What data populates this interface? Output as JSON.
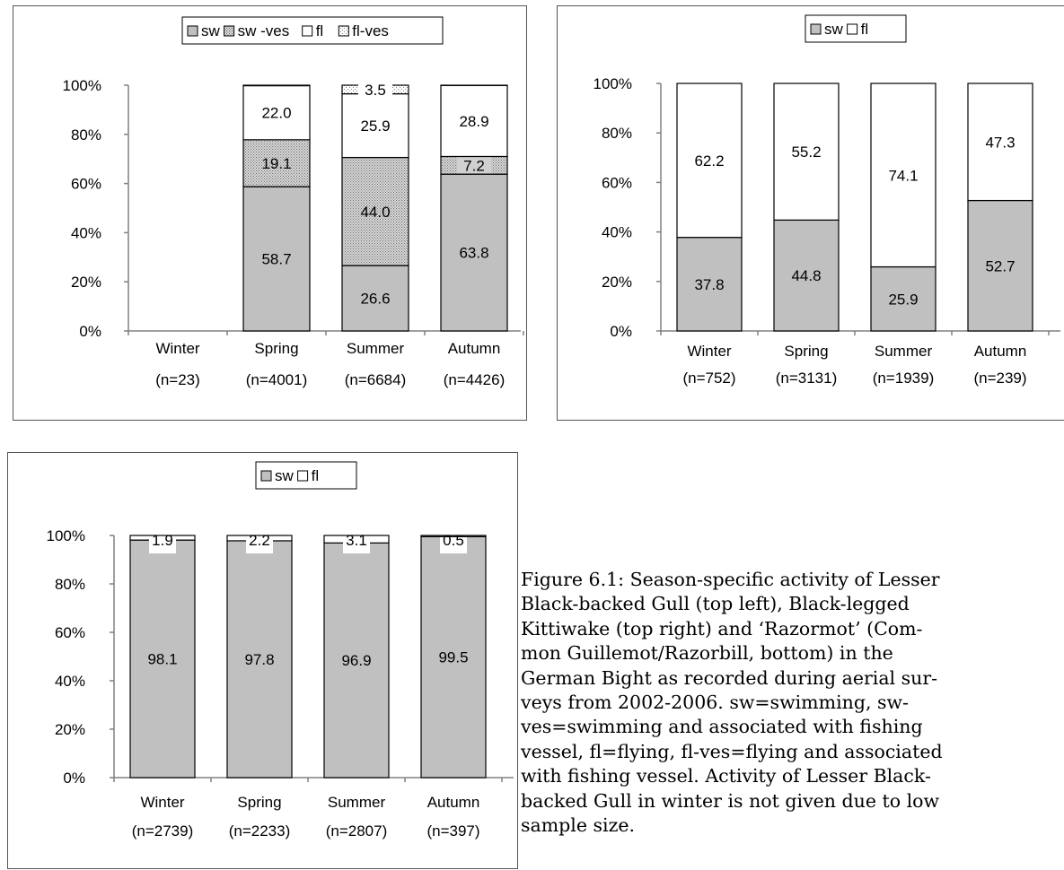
{
  "colors": {
    "sw": "#c0c0c0",
    "sw_ves": "#c8c8c8",
    "fl": "#ffffff",
    "fl_ves": "#e4e4e4",
    "axis": "#808080",
    "border": "#000000"
  },
  "chart_data": [
    {
      "type": "bar",
      "stacked": true,
      "legend_position": "top-center",
      "categories": [
        "Winter\n(n=23)",
        "Spring\n(n=4001)",
        "Summer\n(n=6684)",
        "Autumn\n(n=4426)"
      ],
      "series": [
        {
          "name": "sw",
          "values": [
            null,
            58.7,
            26.6,
            63.8
          ]
        },
        {
          "name": "sw -ves",
          "values": [
            null,
            19.1,
            44.0,
            7.2
          ]
        },
        {
          "name": "fl",
          "values": [
            null,
            22.0,
            25.9,
            28.9
          ]
        },
        {
          "name": "fl-ves",
          "values": [
            null,
            0.2,
            3.5,
            0.1
          ]
        }
      ],
      "data_labels": [
        {
          "category": 1,
          "series": 0,
          "text": "58.7"
        },
        {
          "category": 1,
          "series": 1,
          "text": "19.1"
        },
        {
          "category": 1,
          "series": 2,
          "text": "22.0"
        },
        {
          "category": 2,
          "series": 0,
          "text": "26.6"
        },
        {
          "category": 2,
          "series": 1,
          "text": "44.0"
        },
        {
          "category": 2,
          "series": 2,
          "text": "25.9"
        },
        {
          "category": 2,
          "series": 3,
          "text": "3.5"
        },
        {
          "category": 3,
          "series": 0,
          "text": "63.8"
        },
        {
          "category": 3,
          "series": 1,
          "text": "7.2"
        },
        {
          "category": 3,
          "series": 2,
          "text": "28.9"
        }
      ],
      "ylim": [
        0,
        100
      ],
      "yticks": [
        "0%",
        "20%",
        "40%",
        "60%",
        "80%",
        "100%"
      ],
      "grid": false
    },
    {
      "type": "bar",
      "stacked": true,
      "legend_position": "top-center",
      "categories": [
        "Winter\n(n=752)",
        "Spring\n(n=3131)",
        "Summer\n(n=1939)",
        "Autumn\n(n=239)"
      ],
      "series": [
        {
          "name": "sw",
          "values": [
            37.8,
            44.8,
            25.9,
            52.7
          ]
        },
        {
          "name": "fl",
          "values": [
            62.2,
            55.2,
            74.1,
            47.3
          ]
        }
      ],
      "data_labels": [
        {
          "category": 0,
          "series": 0,
          "text": "37.8"
        },
        {
          "category": 0,
          "series": 1,
          "text": "62.2"
        },
        {
          "category": 1,
          "series": 0,
          "text": "44.8"
        },
        {
          "category": 1,
          "series": 1,
          "text": "55.2"
        },
        {
          "category": 2,
          "series": 0,
          "text": "25.9"
        },
        {
          "category": 2,
          "series": 1,
          "text": "74.1"
        },
        {
          "category": 3,
          "series": 0,
          "text": "52.7"
        },
        {
          "category": 3,
          "series": 1,
          "text": "47.3"
        }
      ],
      "ylim": [
        0,
        100
      ],
      "yticks": [
        "0%",
        "20%",
        "40%",
        "60%",
        "80%",
        "100%"
      ],
      "grid": false
    },
    {
      "type": "bar",
      "stacked": true,
      "legend_position": "top-center",
      "categories": [
        "Winter\n(n=2739)",
        "Spring\n(n=2233)",
        "Summer\n(n=2807)",
        "Autumn\n(n=397)"
      ],
      "series": [
        {
          "name": "sw",
          "values": [
            98.1,
            97.8,
            96.9,
            99.5
          ]
        },
        {
          "name": "fl",
          "values": [
            1.9,
            2.2,
            3.1,
            0.5
          ]
        }
      ],
      "data_labels": [
        {
          "category": 0,
          "series": 0,
          "text": "98.1"
        },
        {
          "category": 0,
          "series": 1,
          "text": "1.9"
        },
        {
          "category": 1,
          "series": 0,
          "text": "97.8"
        },
        {
          "category": 1,
          "series": 1,
          "text": "2.2"
        },
        {
          "category": 2,
          "series": 0,
          "text": "96.9"
        },
        {
          "category": 2,
          "series": 1,
          "text": "3.1"
        },
        {
          "category": 3,
          "series": 0,
          "text": "99.5"
        },
        {
          "category": 3,
          "series": 1,
          "text": "0.5"
        }
      ],
      "ylim": [
        0,
        100
      ],
      "yticks": [
        "0%",
        "20%",
        "40%",
        "60%",
        "80%",
        "100%"
      ],
      "grid": false
    }
  ],
  "caption": "Figure 6.1: Season-specific activity of Lesser\nBlack-backed Gull (top left), Black-legged\nKittiwake (top right) and ‘Razormot’ (Com-\nmon Guillemot/Razorbill, bottom) in the\nGerman Bight as recorded during aerial sur-\nveys from 2002-2006. sw=swimming, sw-\nves=swimming and associated with fishing\nvessel, fl=flying, fl-ves=flying and associated\nwith fishing vessel. Activity of Lesser Black-\nbacked Gull in winter is not given due to low\nsample size."
}
